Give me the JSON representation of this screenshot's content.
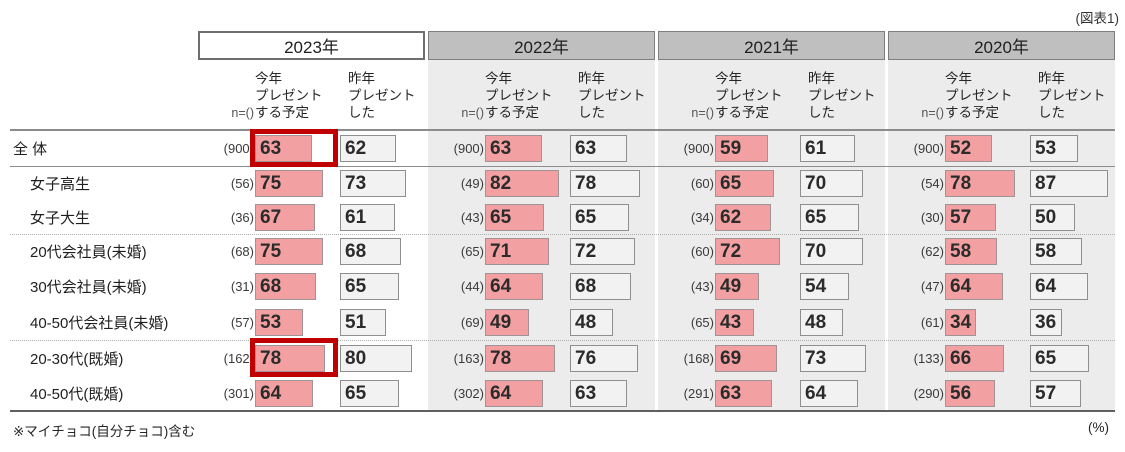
{
  "chart_data": {
    "type": "table",
    "title": "(図表1)",
    "unit": "(%)",
    "footnote": "※マイチョコ(自分チョコ)含む",
    "n_header": "n=()",
    "years": [
      "2023年",
      "2022年",
      "2021年",
      "2020年"
    ],
    "measures": [
      {
        "key": "plan",
        "label_lines": [
          "今年",
          "プレゼント",
          "する予定"
        ]
      },
      {
        "key": "last",
        "label_lines": [
          "昨年",
          "プレゼント",
          "した"
        ]
      }
    ],
    "rows": [
      {
        "label": "全 体",
        "indent": false,
        "cells": [
          {
            "n": "(900)",
            "plan": 63,
            "last": 62
          },
          {
            "n": "(900)",
            "plan": 63,
            "last": 63
          },
          {
            "n": "(900)",
            "plan": 59,
            "last": 61
          },
          {
            "n": "(900)",
            "plan": 52,
            "last": 53
          }
        ]
      },
      {
        "label": "女子高生",
        "indent": true,
        "cells": [
          {
            "n": "(56)",
            "plan": 75,
            "last": 73
          },
          {
            "n": "(49)",
            "plan": 82,
            "last": 78
          },
          {
            "n": "(60)",
            "plan": 65,
            "last": 70
          },
          {
            "n": "(54)",
            "plan": 78,
            "last": 87
          }
        ]
      },
      {
        "label": "女子大生",
        "indent": true,
        "cells": [
          {
            "n": "(36)",
            "plan": 67,
            "last": 61
          },
          {
            "n": "(43)",
            "plan": 65,
            "last": 65
          },
          {
            "n": "(34)",
            "plan": 62,
            "last": 65
          },
          {
            "n": "(30)",
            "plan": 57,
            "last": 50
          }
        ]
      },
      {
        "label": "20代会社員(未婚)",
        "indent": true,
        "cells": [
          {
            "n": "(68)",
            "plan": 75,
            "last": 68
          },
          {
            "n": "(65)",
            "plan": 71,
            "last": 72
          },
          {
            "n": "(60)",
            "plan": 72,
            "last": 70
          },
          {
            "n": "(62)",
            "plan": 58,
            "last": 58
          }
        ]
      },
      {
        "label": "30代会社員(未婚)",
        "indent": true,
        "cells": [
          {
            "n": "(31)",
            "plan": 68,
            "last": 65
          },
          {
            "n": "(44)",
            "plan": 64,
            "last": 68
          },
          {
            "n": "(43)",
            "plan": 49,
            "last": 54
          },
          {
            "n": "(47)",
            "plan": 64,
            "last": 64
          }
        ]
      },
      {
        "label": "40-50代会社員(未婚)",
        "indent": true,
        "cells": [
          {
            "n": "(57)",
            "plan": 53,
            "last": 51
          },
          {
            "n": "(69)",
            "plan": 49,
            "last": 48
          },
          {
            "n": "(65)",
            "plan": 43,
            "last": 48
          },
          {
            "n": "(61)",
            "plan": 34,
            "last": 36
          }
        ]
      },
      {
        "label": "20-30代(既婚)",
        "indent": true,
        "cells": [
          {
            "n": "(162)",
            "plan": 78,
            "last": 80
          },
          {
            "n": "(163)",
            "plan": 78,
            "last": 76
          },
          {
            "n": "(168)",
            "plan": 69,
            "last": 73
          },
          {
            "n": "(133)",
            "plan": 66,
            "last": 65
          }
        ]
      },
      {
        "label": "40-50代(既婚)",
        "indent": true,
        "cells": [
          {
            "n": "(301)",
            "plan": 64,
            "last": 65
          },
          {
            "n": "(302)",
            "plan": 64,
            "last": 63
          },
          {
            "n": "(291)",
            "plan": 63,
            "last": 64
          },
          {
            "n": "(290)",
            "plan": 56,
            "last": 57
          }
        ]
      }
    ],
    "highlights": [
      {
        "row": 0,
        "year": 0,
        "measure": "plan"
      },
      {
        "row": 6,
        "year": 0,
        "measure": "plan"
      }
    ],
    "separators": {
      "solid_after_rows": [
        0
      ],
      "dotted_after_rows": [
        2,
        5
      ]
    },
    "colors": {
      "bar_pink": "#F3A0A2",
      "box_gray": "#F2F2F2",
      "header_gray": "#BFBFBF",
      "column_bg": "#ECECEC",
      "highlight_red": "#C00000"
    }
  }
}
